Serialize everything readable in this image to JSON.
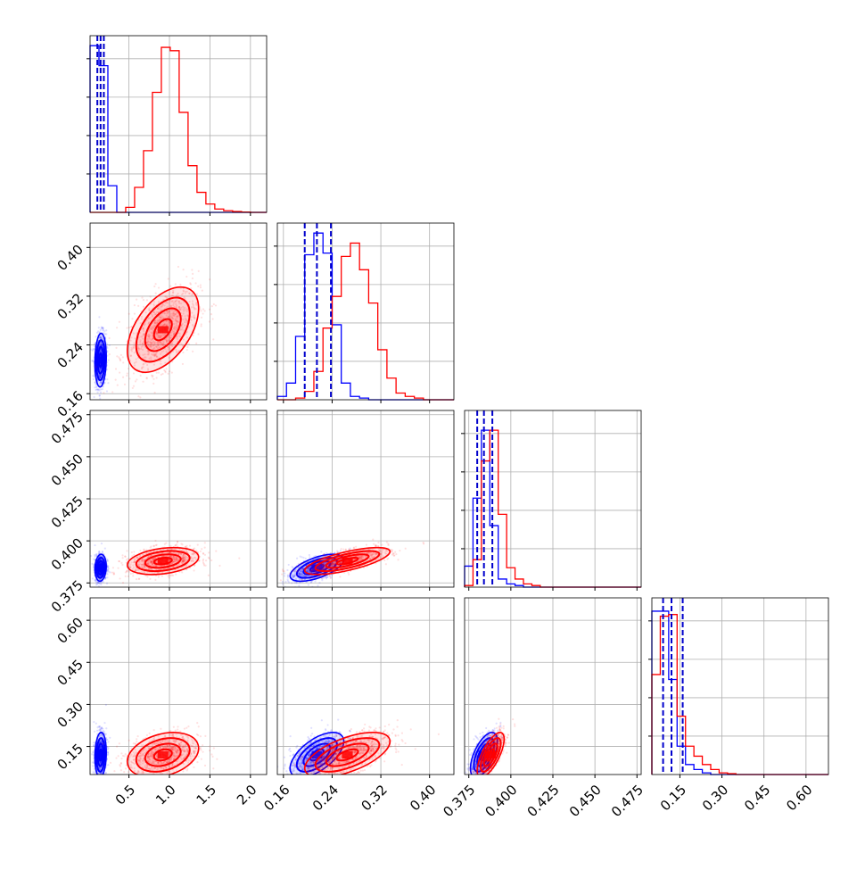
{
  "chart_data": {
    "type": "corner",
    "parameters": [
      {
        "range": [
          0.02,
          2.2
        ],
        "ticks": [
          0.5,
          1.0,
          1.5,
          2.0
        ],
        "tick_labels": [
          "0.5",
          "1.0",
          "1.5",
          "2.0"
        ]
      },
      {
        "range": [
          0.15,
          0.44
        ],
        "ticks": [
          0.16,
          0.24,
          0.32,
          0.4
        ],
        "tick_labels": [
          "0.16",
          "0.24",
          "0.32",
          "0.40"
        ]
      },
      {
        "range": [
          0.3725,
          0.4775
        ],
        "ticks": [
          0.375,
          0.4,
          0.425,
          0.45,
          0.475
        ],
        "tick_labels": [
          "0.375",
          "0.400",
          "0.425",
          "0.450",
          "0.475"
        ]
      },
      {
        "range": [
          0.05,
          0.68
        ],
        "ticks": [
          0.15,
          0.3,
          0.45,
          0.6
        ],
        "tick_labels": [
          "0.15",
          "0.30",
          "0.45",
          "0.60"
        ]
      }
    ],
    "series": [
      {
        "color": "#0000ff",
        "mean": [
          0.15,
          0.215,
          0.384,
          0.12
        ],
        "std": [
          0.035,
          0.022,
          0.004,
          0.04
        ],
        "corr": [
          [
            1.0,
            0.1,
            0.1,
            0.1
          ],
          [
            0.1,
            1.0,
            0.6,
            0.6
          ],
          [
            0.1,
            0.6,
            1.0,
            0.6
          ],
          [
            0.1,
            0.6,
            0.6,
            1.0
          ]
        ],
        "quantiles": [
          [
            0.11,
            0.15,
            0.19
          ],
          [
            0.195,
            0.215,
            0.238
          ],
          [
            0.38,
            0.384,
            0.389
          ],
          [
            0.09,
            0.12,
            0.16
          ]
        ]
      },
      {
        "color": "#ff0000",
        "mean": [
          0.92,
          0.265,
          0.388,
          0.12
        ],
        "std": [
          0.22,
          0.035,
          0.004,
          0.04
        ],
        "corr": [
          [
            1.0,
            0.5,
            0.3,
            0.3
          ],
          [
            0.5,
            1.0,
            0.7,
            0.6
          ],
          [
            0.3,
            0.7,
            1.0,
            0.7
          ],
          [
            0.3,
            0.6,
            0.7,
            1.0
          ]
        ],
        "quantiles": null
      }
    ],
    "hist_1d": [
      {
        "bin_edges": [
          0.02,
          0.13,
          0.24,
          0.35,
          0.46,
          0.57,
          0.68,
          0.79,
          0.9,
          1.01,
          1.12,
          1.23,
          1.34,
          1.45,
          1.56,
          1.67,
          1.78,
          1.89,
          2.0,
          2.11,
          2.2
        ],
        "blue": [
          1.0,
          0.88,
          0.16,
          0,
          0,
          0,
          0,
          0,
          0,
          0,
          0,
          0,
          0,
          0,
          0,
          0,
          0,
          0,
          0,
          0
        ],
        "red": [
          0,
          0,
          0,
          0,
          0.03,
          0.15,
          0.37,
          0.72,
          0.99,
          0.97,
          0.6,
          0.28,
          0.12,
          0.05,
          0.02,
          0.01,
          0.005,
          0.002,
          0,
          0
        ]
      },
      {
        "bin_edges": [
          0.15,
          0.165,
          0.18,
          0.195,
          0.21,
          0.225,
          0.24,
          0.255,
          0.27,
          0.285,
          0.3,
          0.315,
          0.33,
          0.345,
          0.36,
          0.375,
          0.39,
          0.405,
          0.42,
          0.44
        ],
        "blue": [
          0.02,
          0.1,
          0.38,
          0.87,
          1.0,
          0.88,
          0.45,
          0.1,
          0.02,
          0.01,
          0,
          0,
          0,
          0,
          0,
          0,
          0,
          0,
          0
        ],
        "red": [
          0,
          0,
          0.01,
          0.05,
          0.17,
          0.43,
          0.62,
          0.86,
          0.94,
          0.78,
          0.58,
          0.3,
          0.13,
          0.04,
          0.02,
          0.01,
          0,
          0,
          0
        ]
      },
      {
        "bin_edges": [
          0.3725,
          0.3775,
          0.3825,
          0.3875,
          0.3925,
          0.3975,
          0.4025,
          0.4075,
          0.4125,
          0.4175,
          0.4225,
          0.4275,
          0.4325,
          0.4375,
          0.4425,
          0.4475,
          0.4525,
          0.4575,
          0.4625,
          0.4675,
          0.4775
        ],
        "blue": [
          0.13,
          0.55,
          0.97,
          0.38,
          0.05,
          0.02,
          0.01,
          0,
          0,
          0,
          0,
          0,
          0,
          0,
          0,
          0,
          0,
          0,
          0,
          0
        ],
        "red": [
          0.01,
          0.17,
          0.78,
          0.97,
          0.45,
          0.12,
          0.05,
          0.02,
          0.01,
          0,
          0,
          0,
          0,
          0,
          0,
          0,
          0,
          0,
          0,
          0
        ]
      },
      {
        "bin_edges": [
          0.05,
          0.08,
          0.11,
          0.14,
          0.17,
          0.2,
          0.23,
          0.26,
          0.29,
          0.32,
          0.35,
          0.38,
          0.41,
          0.44,
          0.47,
          0.5,
          0.53,
          0.56,
          0.59,
          0.62,
          0.68
        ],
        "blue": [
          0.98,
          0.98,
          0.57,
          0.17,
          0.06,
          0.03,
          0.01,
          0,
          0,
          0,
          0,
          0,
          0,
          0,
          0,
          0,
          0,
          0,
          0,
          0
        ],
        "red": [
          0.6,
          0.95,
          0.96,
          0.35,
          0.17,
          0.11,
          0.06,
          0.03,
          0.01,
          0.005,
          0,
          0,
          0,
          0,
          0,
          0,
          0,
          0,
          0,
          0
        ]
      }
    ],
    "hist_max": [
      1,
      1,
      1.03,
      1.0
    ],
    "grid": true,
    "xlabel": "",
    "ylabel": "",
    "title": ""
  }
}
